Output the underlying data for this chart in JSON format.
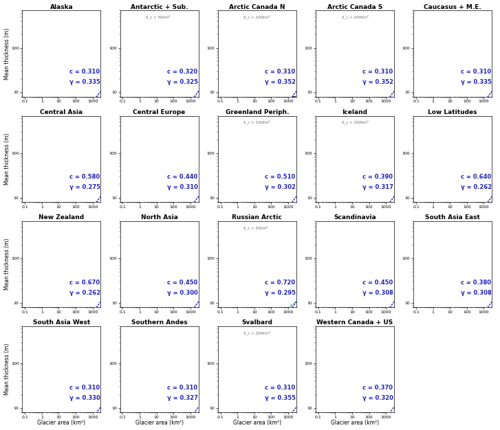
{
  "panels": [
    {
      "title": "Alaska",
      "c": 0.31,
      "gamma": 0.335,
      "sc_label": null,
      "xmax_data": 3000
    },
    {
      "title": "Antarctic + Sub.",
      "c": 0.32,
      "gamma": 0.325,
      "sc_label": "S_c > 50km²",
      "xmax_data": 3000
    },
    {
      "title": "Arctic Canada N",
      "c": 0.31,
      "gamma": 0.352,
      "sc_label": "S_c > 100km²",
      "xmax_data": 3000
    },
    {
      "title": "Arctic Canada S",
      "c": 0.31,
      "gamma": 0.352,
      "sc_label": "S_c > 200km²",
      "xmax_data": 3000
    },
    {
      "title": "Caucasus + M.E.",
      "c": 0.31,
      "gamma": 0.335,
      "sc_label": null,
      "xmax_data": 1000
    },
    {
      "title": "Central Asia",
      "c": 0.58,
      "gamma": 0.275,
      "sc_label": null,
      "xmax_data": 1000
    },
    {
      "title": "Central Europe",
      "c": 0.44,
      "gamma": 0.31,
      "sc_label": null,
      "xmax_data": 100
    },
    {
      "title": "Greenland Periph.",
      "c": 0.51,
      "gamma": 0.302,
      "sc_label": "S_c > 100km²",
      "xmax_data": 3000
    },
    {
      "title": "Iceland",
      "c": 0.39,
      "gamma": 0.317,
      "sc_label": "S_c > 100km²",
      "xmax_data": 3000
    },
    {
      "title": "Low Latitudes",
      "c": 0.64,
      "gamma": 0.262,
      "sc_label": null,
      "xmax_data": 100
    },
    {
      "title": "New Zealand",
      "c": 0.67,
      "gamma": 0.262,
      "sc_label": null,
      "xmax_data": 100
    },
    {
      "title": "North Asia",
      "c": 0.45,
      "gamma": 0.3,
      "sc_label": null,
      "xmax_data": 300
    },
    {
      "title": "Russian Arctic",
      "c": 0.72,
      "gamma": 0.295,
      "sc_label": "S_c > 50km²",
      "xmax_data": 3000
    },
    {
      "title": "Scandinavia",
      "c": 0.45,
      "gamma": 0.308,
      "sc_label": null,
      "xmax_data": 300
    },
    {
      "title": "South Asia East",
      "c": 0.38,
      "gamma": 0.308,
      "sc_label": null,
      "xmax_data": 1000
    },
    {
      "title": "South Asia West",
      "c": 0.31,
      "gamma": 0.33,
      "sc_label": null,
      "xmax_data": 1000
    },
    {
      "title": "Southern Andes",
      "c": 0.31,
      "gamma": 0.327,
      "sc_label": null,
      "xmax_data": 3000
    },
    {
      "title": "Svalbard",
      "c": 0.31,
      "gamma": 0.355,
      "sc_label": "S_c > 200km²",
      "xmax_data": 3000
    },
    {
      "title": "Western Canada + US",
      "c": 0.37,
      "gamma": 0.32,
      "sc_label": null,
      "xmax_data": 1000
    }
  ],
  "nrows": 4,
  "ncols": 5,
  "xmin": 0.07,
  "xmax": 3000,
  "ymin": 8,
  "ymax": 700,
  "blue_line_color": "#2222bb",
  "green_line_color": "#006600",
  "dashed_green_color": "#009933",
  "error_bar_color": "#cc2222",
  "annotation_color": "#2222bb",
  "background_color": "#ffffff",
  "ylabel": "Mean thickness (m)",
  "xlabel": "Glacier area (km²)",
  "global_c": 0.191,
  "global_gamma": 0.5
}
